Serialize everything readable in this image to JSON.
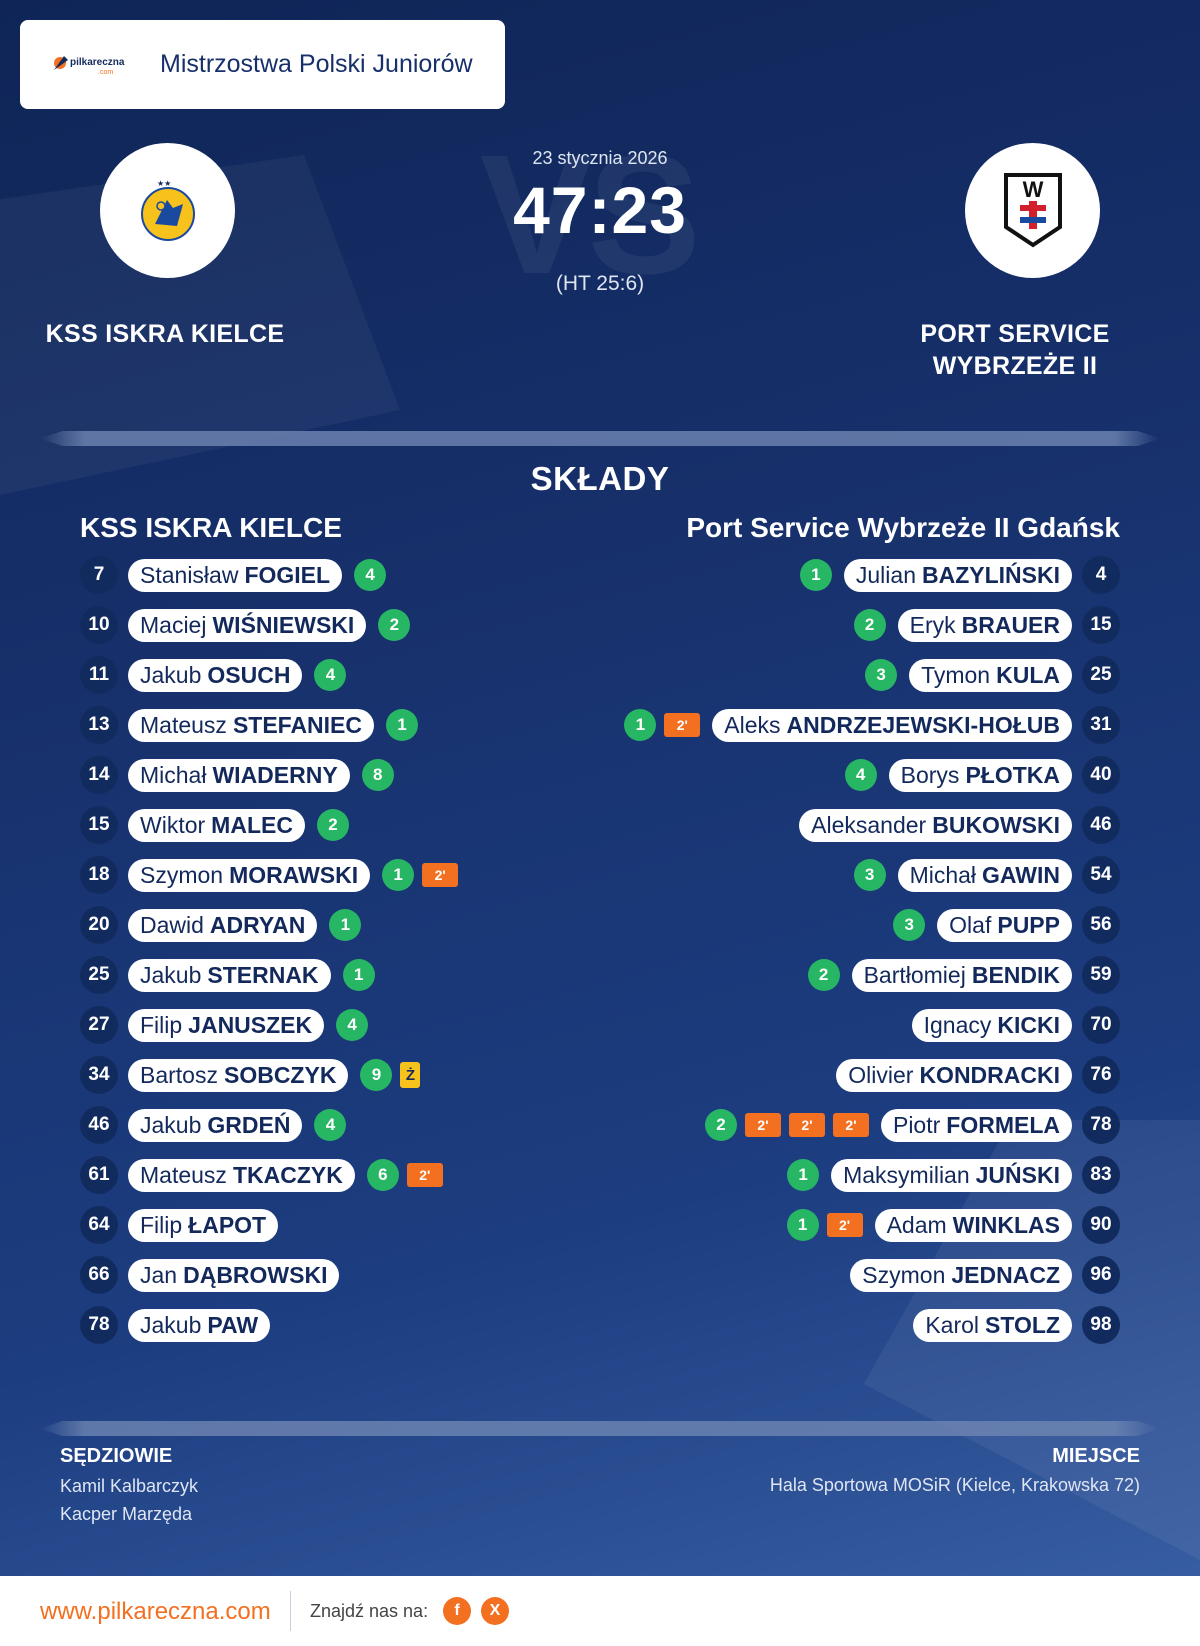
{
  "header": {
    "title": "Mistrzostwa Polski Juniorów",
    "logo_text": "pilkareczna",
    "logo_sub": ".com"
  },
  "match": {
    "date": "23 stycznia 2026",
    "score": "47:23",
    "halftime": "(HT 25:6)",
    "vs_watermark": "VS",
    "home": {
      "name": "KSS ISKRA KIELCE",
      "logo_icon": "iskra-kielce-crest"
    },
    "away": {
      "name_line1": "PORT SERVICE",
      "name_line2": "WYBRZEŻE II",
      "logo_icon": "wybrzeze-crest",
      "logo_letter": "W"
    }
  },
  "squads": {
    "title": "SKŁADY",
    "home": {
      "title": "KSS ISKRA KIELCE",
      "players": [
        {
          "number": "7",
          "first": "Stanisław",
          "last": "FOGIEL",
          "goals": "4",
          "cards": []
        },
        {
          "number": "10",
          "first": "Maciej",
          "last": "WIŚNIEWSKI",
          "goals": "2",
          "cards": []
        },
        {
          "number": "11",
          "first": "Jakub",
          "last": "OSUCH",
          "goals": "4",
          "cards": []
        },
        {
          "number": "13",
          "first": "Mateusz",
          "last": "STEFANIEC",
          "goals": "1",
          "cards": []
        },
        {
          "number": "14",
          "first": "Michał",
          "last": "WIADERNY",
          "goals": "8",
          "cards": []
        },
        {
          "number": "15",
          "first": "Wiktor",
          "last": "MALEC",
          "goals": "2",
          "cards": []
        },
        {
          "number": "18",
          "first": "Szymon",
          "last": "MORAWSKI",
          "goals": "1",
          "cards": [
            "2'"
          ]
        },
        {
          "number": "20",
          "first": "Dawid",
          "last": "ADRYAN",
          "goals": "1",
          "cards": []
        },
        {
          "number": "25",
          "first": "Jakub",
          "last": "STERNAK",
          "goals": "1",
          "cards": []
        },
        {
          "number": "27",
          "first": "Filip",
          "last": "JANUSZEK",
          "goals": "4",
          "cards": []
        },
        {
          "number": "34",
          "first": "Bartosz",
          "last": "SOBCZYK",
          "goals": "9",
          "cards": [
            "Ż"
          ]
        },
        {
          "number": "46",
          "first": "Jakub",
          "last": "GRDEŃ",
          "goals": "4",
          "cards": []
        },
        {
          "number": "61",
          "first": "Mateusz",
          "last": "TKACZYK",
          "goals": "6",
          "cards": [
            "2'"
          ]
        },
        {
          "number": "64",
          "first": "Filip",
          "last": "ŁAPOT",
          "goals": "",
          "cards": []
        },
        {
          "number": "66",
          "first": "Jan",
          "last": "DĄBROWSKI",
          "goals": "",
          "cards": []
        },
        {
          "number": "78",
          "first": "Jakub",
          "last": "PAW",
          "goals": "",
          "cards": []
        }
      ]
    },
    "away": {
      "title": "Port Service Wybrzeże II Gdańsk",
      "players": [
        {
          "number": "4",
          "first": "Julian",
          "last": "BAZYLIŃSKI",
          "goals": "1",
          "cards": []
        },
        {
          "number": "15",
          "first": "Eryk",
          "last": "BRAUER",
          "goals": "2",
          "cards": []
        },
        {
          "number": "25",
          "first": "Tymon",
          "last": "KULA",
          "goals": "3",
          "cards": []
        },
        {
          "number": "31",
          "first": "Aleks",
          "last": "ANDRZEJEWSKI-HOŁUB",
          "goals": "1",
          "cards": [
            "2'"
          ]
        },
        {
          "number": "40",
          "first": "Borys",
          "last": "PŁOTKA",
          "goals": "4",
          "cards": []
        },
        {
          "number": "46",
          "first": "Aleksander",
          "last": "BUKOWSKI",
          "goals": "",
          "cards": []
        },
        {
          "number": "54",
          "first": "Michał",
          "last": "GAWIN",
          "goals": "3",
          "cards": []
        },
        {
          "number": "56",
          "first": "Olaf",
          "last": "PUPP",
          "goals": "3",
          "cards": []
        },
        {
          "number": "59",
          "first": "Bartłomiej",
          "last": "BENDIK",
          "goals": "2",
          "cards": []
        },
        {
          "number": "70",
          "first": "Ignacy",
          "last": "KICKI",
          "goals": "",
          "cards": []
        },
        {
          "number": "76",
          "first": "Olivier",
          "last": "KONDRACKI",
          "goals": "",
          "cards": []
        },
        {
          "number": "78",
          "first": "Piotr",
          "last": "FORMELA",
          "goals": "2",
          "cards": [
            "2'",
            "2'",
            "2'"
          ]
        },
        {
          "number": "83",
          "first": "Maksymilian",
          "last": "JUŃSKI",
          "goals": "1",
          "cards": []
        },
        {
          "number": "90",
          "first": "Adam",
          "last": "WINKLAS",
          "goals": "1",
          "cards": [
            "2'"
          ]
        },
        {
          "number": "96",
          "first": "Szymon",
          "last": "JEDNACZ",
          "goals": "",
          "cards": []
        },
        {
          "number": "98",
          "first": "Karol",
          "last": "STOLZ",
          "goals": "",
          "cards": []
        }
      ]
    }
  },
  "officials": {
    "referees_label": "SĘDZIOWIE",
    "referees": [
      "Kamil Kalbarczyk",
      "Kacper Marzęda"
    ],
    "venue_label": "MIEJSCE",
    "venue": "Hala Sportowa MOSiR (Kielce, Krakowska 72)"
  },
  "footer": {
    "url": "www.pilkareczna.com",
    "find_us": "Znajdź nas na:",
    "social": [
      {
        "icon": "facebook-icon",
        "glyph": "f"
      },
      {
        "icon": "x-icon",
        "glyph": "X"
      }
    ]
  },
  "colors": {
    "goal": "#27b663",
    "suspension": "#f37021",
    "yellow_card": "#f6c21b",
    "brand_orange": "#f37021",
    "navy": "#13295c"
  }
}
